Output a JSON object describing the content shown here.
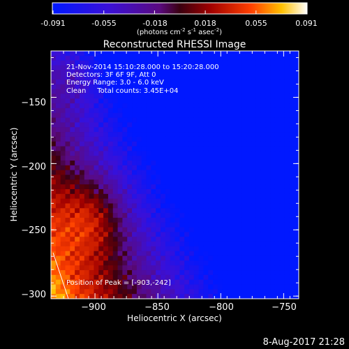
{
  "colorbar": {
    "ticks": [
      "-0.091",
      "-0.055",
      "-0.018",
      "0.018",
      "0.055",
      "0.091"
    ],
    "min": -0.091,
    "max": 0.091,
    "units_prefix": "(photons cm",
    "units_exp1": "-2",
    "units_mid": " s",
    "units_exp2": "-1",
    "units_mid2": " asec",
    "units_exp3": "-2",
    "units_suffix": ")"
  },
  "chart_data": {
    "type": "heatmap",
    "title": "Reconstructed RHESSI Image",
    "xlabel": "Heliocentric X (arcsec)",
    "ylabel": "Heliocentric Y (arcsec)",
    "xlim": [
      -935,
      -738
    ],
    "ylim": [
      -302,
      -115
    ],
    "xticks": [
      -900,
      -850,
      -800,
      -750
    ],
    "yticks": [
      -150,
      -200,
      -250,
      -300
    ],
    "xtick_labels": [
      "−900",
      "−850",
      "−800",
      "−750"
    ],
    "ytick_labels": [
      "−150",
      "−200",
      "−250",
      "−300"
    ],
    "annotations": {
      "time": "21-Nov-2014 15:10:28.000 to 15:20:28.000",
      "detectors": "Detectors: 3F 6F 9F, Att 0",
      "energy": "Energy Range: 3.0 - 6.0 keV",
      "method": "Clean     Total counts: 3.45E+04",
      "peak": "Position of Peak = [-903,-242]"
    },
    "peak": {
      "x": -903,
      "y": -242
    },
    "limb_visible": true,
    "colormap": "rhessi-blue-purple-red-yellow-white"
  },
  "footer": {
    "date": "8-Aug-2017 21:28"
  }
}
